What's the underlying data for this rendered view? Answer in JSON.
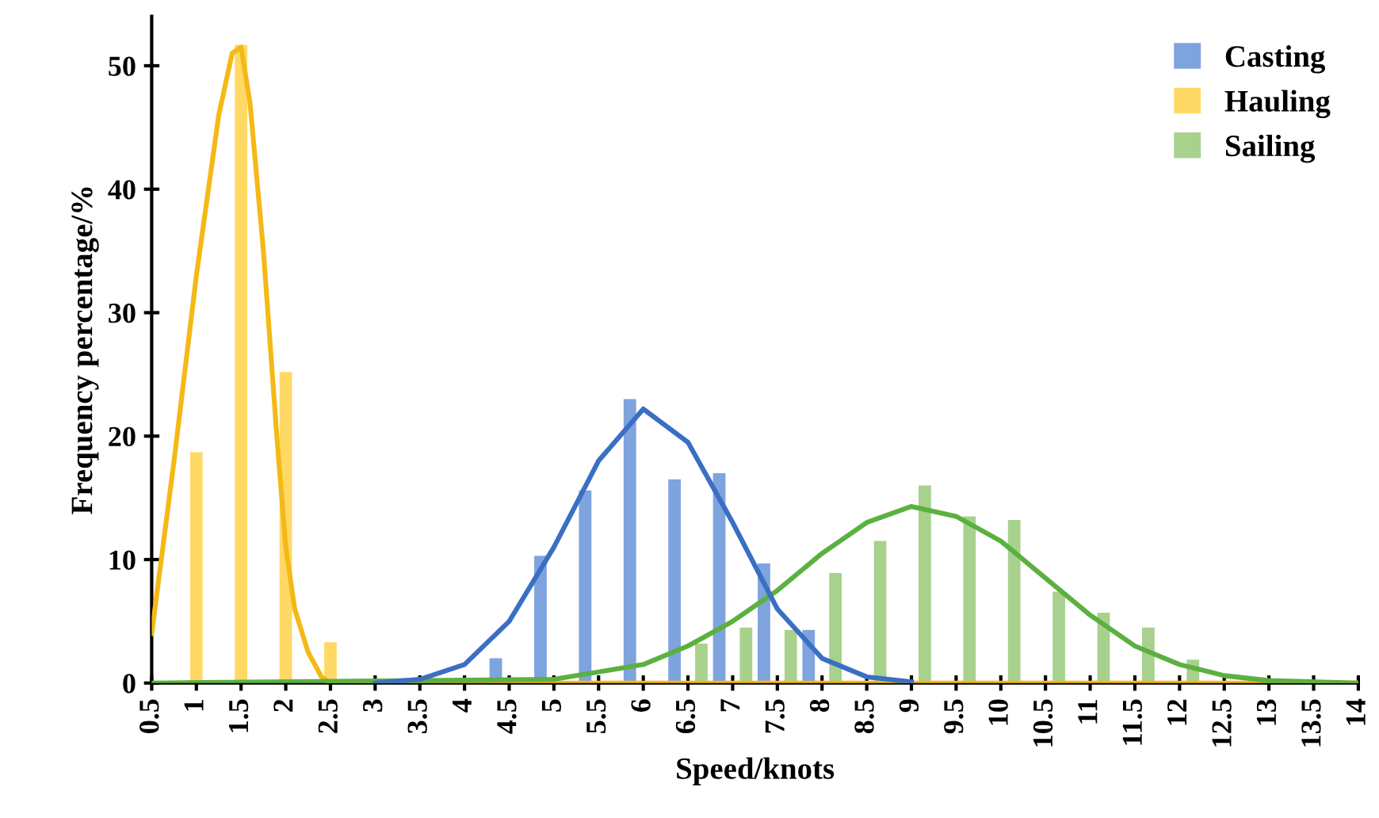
{
  "chart_data": {
    "type": "bar",
    "xlabel": "Speed/knots",
    "ylabel": "Frequency percentage/%",
    "xlim": [
      0.5,
      14
    ],
    "xticks": [
      0.5,
      1,
      1.5,
      2,
      2.5,
      3,
      3.5,
      4,
      4.5,
      5,
      5.5,
      6,
      6.5,
      7,
      7.5,
      8,
      8.5,
      9,
      9.5,
      10,
      10.5,
      11,
      11.5,
      12,
      12.5,
      13,
      13.5,
      14
    ],
    "ylim": [
      0,
      54
    ],
    "yticks": [
      0,
      10,
      20,
      30,
      40,
      50
    ],
    "legend": "top right",
    "grid": false,
    "series": [
      {
        "name": "Casting",
        "color": "#7fa3dd",
        "x": [
          4.35,
          4.85,
          5.35,
          5.85,
          6.35,
          6.85,
          7.35,
          7.85
        ],
        "values": [
          2.0,
          10.3,
          15.6,
          23.0,
          16.5,
          17.0,
          9.7,
          4.3
        ]
      },
      {
        "name": "Hauling",
        "color": "#ffd966",
        "x": [
          1,
          1.5,
          2,
          2.5
        ],
        "values": [
          18.7,
          51.7,
          25.2,
          3.3
        ]
      },
      {
        "name": "Sailing",
        "color": "#a9d18e",
        "x": [
          6.65,
          7.15,
          7.65,
          8.15,
          8.65,
          9.15,
          9.65,
          10.15,
          10.65,
          11.15,
          11.65,
          12.15
        ],
        "values": [
          3.2,
          4.5,
          4.3,
          8.9,
          11.5,
          16.0,
          13.5,
          13.2,
          7.4,
          5.7,
          4.5,
          1.9
        ]
      },
      {
        "type": "line",
        "color": "#f4b916",
        "x": [
          0.5,
          0.75,
          1.0,
          1.25,
          1.4,
          1.5,
          1.6,
          1.75,
          1.9,
          2.0,
          2.1,
          2.25,
          2.4,
          2.5,
          14
        ],
        "values": [
          4,
          18,
          33,
          46,
          51,
          51.5,
          47,
          35,
          20,
          11,
          6,
          2.5,
          0.5,
          0,
          0
        ]
      },
      {
        "type": "line",
        "color": "#5cb040",
        "x": [
          0.5,
          5,
          6,
          6.5,
          7,
          7.5,
          8,
          8.5,
          9,
          9.5,
          10,
          10.5,
          11,
          11.5,
          12,
          12.5,
          13,
          14
        ],
        "values": [
          0,
          0.3,
          1.5,
          3,
          5,
          7.5,
          10.5,
          13,
          14.3,
          13.5,
          11.5,
          8.5,
          5.5,
          3,
          1.5,
          0.6,
          0.2,
          0
        ]
      },
      {
        "type": "line",
        "color": "#3a6fc4",
        "x": [
          3,
          3.5,
          4,
          4.5,
          5,
          5.5,
          6,
          6.5,
          7,
          7.5,
          8,
          8.5,
          9
        ],
        "values": [
          0,
          0.3,
          1.5,
          5,
          11,
          18,
          22.2,
          19.5,
          13,
          6,
          2,
          0.5,
          0.1
        ]
      }
    ]
  }
}
